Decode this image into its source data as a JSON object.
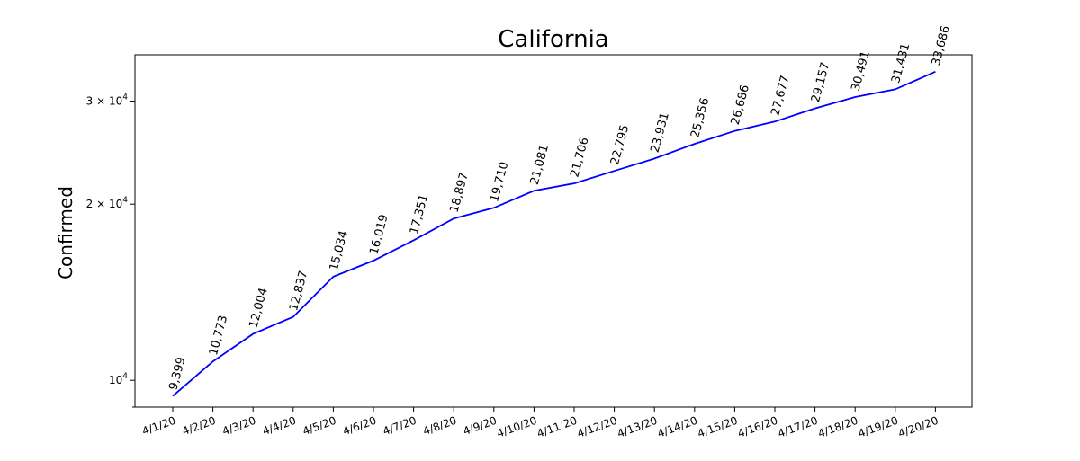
{
  "chart_data": {
    "type": "line",
    "title": "California",
    "xlabel": "",
    "ylabel": "Confirmed",
    "yscale": "log",
    "ylim": [
      9000,
      36000
    ],
    "grid": false,
    "line_color": "#0000ff",
    "categories": [
      "4/1/20",
      "4/2/20",
      "4/3/20",
      "4/4/20",
      "4/5/20",
      "4/6/20",
      "4/7/20",
      "4/8/20",
      "4/9/20",
      "4/10/20",
      "4/11/20",
      "4/12/20",
      "4/13/20",
      "4/14/20",
      "4/15/20",
      "4/16/20",
      "4/17/20",
      "4/18/20",
      "4/19/20",
      "4/20/20"
    ],
    "values": [
      9399,
      10773,
      12004,
      12837,
      15034,
      16019,
      17351,
      18897,
      19710,
      21081,
      21706,
      22795,
      23931,
      25356,
      26686,
      27677,
      29157,
      30491,
      31431,
      33686
    ],
    "data_labels": [
      "9,399",
      "10,773",
      "12,004",
      "12,837",
      "15,034",
      "16,019",
      "17,351",
      "18,897",
      "19,710",
      "21,081",
      "21,706",
      "22,795",
      "23,931",
      "25,356",
      "26,686",
      "27,677",
      "29,157",
      "30,491",
      "31,431",
      "33,686"
    ],
    "y_major_ticks": [
      {
        "value": 10000,
        "base": "10",
        "exp": "4"
      },
      {
        "value": 20000,
        "base": "2 × 10",
        "exp": "4"
      },
      {
        "value": 30000,
        "base": "3 × 10",
        "exp": "4"
      }
    ]
  }
}
